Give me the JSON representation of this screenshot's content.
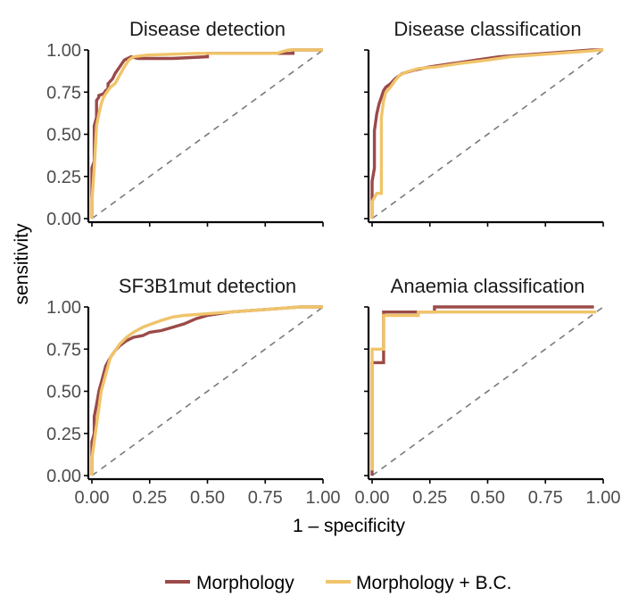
{
  "colors": {
    "morphology": "#9b4a48",
    "morphology_bc": "#f0c46a",
    "overlap": "#d99638",
    "diagonal": "#7a7a7a"
  },
  "xlabel": "1 – specificity",
  "ylabel": "sensitivity",
  "legend": {
    "position": "bottom",
    "items": [
      "Morphology",
      "Morphology + B.C."
    ]
  },
  "chart_data": [
    {
      "type": "line",
      "title": "Disease detection",
      "xlim": [
        0,
        1
      ],
      "ylim": [
        0,
        1
      ],
      "x_ticks": [
        "0.00",
        "0.25",
        "0.50",
        "0.75",
        "1.00"
      ],
      "y_ticks": [
        "0.00",
        "0.25",
        "0.50",
        "0.75",
        "1.00"
      ],
      "series": [
        {
          "name": "Morphology",
          "x": [
            0,
            0,
            0.01,
            0.01,
            0.02,
            0.02,
            0.03,
            0.03,
            0.05,
            0.06,
            0.07,
            0.07,
            0.09,
            0.1,
            0.12,
            0.14,
            0.17,
            0.2,
            0.35,
            0.5,
            0.5,
            0.87,
            0.87,
            1.0
          ],
          "y": [
            0,
            0.3,
            0.34,
            0.55,
            0.6,
            0.7,
            0.72,
            0.73,
            0.74,
            0.76,
            0.77,
            0.8,
            0.83,
            0.86,
            0.9,
            0.94,
            0.96,
            0.95,
            0.95,
            0.96,
            0.98,
            0.98,
            1.0,
            1.0
          ]
        },
        {
          "name": "Morphology + B.C.",
          "x": [
            0,
            0,
            0.01,
            0.02,
            0.03,
            0.04,
            0.05,
            0.06,
            0.08,
            0.1,
            0.12,
            0.14,
            0.16,
            0.18,
            0.24,
            0.45,
            0.8,
            0.85,
            1.0
          ],
          "y": [
            0,
            0.1,
            0.3,
            0.55,
            0.62,
            0.68,
            0.72,
            0.74,
            0.78,
            0.8,
            0.85,
            0.9,
            0.94,
            0.96,
            0.97,
            0.98,
            0.98,
            1.0,
            1.0
          ]
        }
      ]
    },
    {
      "type": "line",
      "title": "Disease classification",
      "xlim": [
        0,
        1
      ],
      "ylim": [
        0,
        1
      ],
      "x_ticks": [
        "0.00",
        "0.25",
        "0.50",
        "0.75",
        "1.00"
      ],
      "y_ticks": [
        "0.00",
        "0.25",
        "0.50",
        "0.75",
        "1.00"
      ],
      "series": [
        {
          "name": "Morphology",
          "x": [
            0,
            0,
            0.01,
            0.01,
            0.02,
            0.03,
            0.04,
            0.05,
            0.06,
            0.08,
            0.1,
            0.13,
            0.18,
            0.25,
            0.35,
            0.45,
            0.55,
            0.65,
            0.75,
            0.85,
            0.95,
            1.0
          ],
          "y": [
            0,
            0.22,
            0.3,
            0.52,
            0.62,
            0.68,
            0.72,
            0.76,
            0.78,
            0.8,
            0.83,
            0.86,
            0.88,
            0.9,
            0.92,
            0.94,
            0.96,
            0.97,
            0.98,
            0.99,
            1.0,
            1.0
          ]
        },
        {
          "name": "Morphology + B.C.",
          "x": [
            0,
            0,
            0.02,
            0.04,
            0.04,
            0.05,
            0.06,
            0.08,
            0.1,
            0.12,
            0.15,
            0.2,
            0.28,
            0.38,
            0.5,
            0.6,
            0.7,
            0.8,
            0.9,
            1.0
          ],
          "y": [
            0,
            0.1,
            0.15,
            0.15,
            0.6,
            0.7,
            0.75,
            0.78,
            0.82,
            0.85,
            0.87,
            0.89,
            0.9,
            0.92,
            0.94,
            0.96,
            0.97,
            0.98,
            0.99,
            1.0
          ]
        }
      ]
    },
    {
      "type": "line",
      "title": "SF3B1mut detection",
      "xlim": [
        0,
        1
      ],
      "ylim": [
        0,
        1
      ],
      "x_ticks": [
        "0.00",
        "0.25",
        "0.50",
        "0.75",
        "1.00"
      ],
      "y_ticks": [
        "0.00",
        "0.25",
        "0.50",
        "0.75",
        "1.00"
      ],
      "series": [
        {
          "name": "Morphology",
          "x": [
            0,
            0,
            0.01,
            0.01,
            0.02,
            0.03,
            0.04,
            0.05,
            0.06,
            0.08,
            0.1,
            0.12,
            0.15,
            0.18,
            0.22,
            0.25,
            0.3,
            0.35,
            0.4,
            0.45,
            0.5,
            0.6,
            0.7,
            0.8,
            0.9,
            1.0
          ],
          "y": [
            0,
            0.2,
            0.25,
            0.35,
            0.42,
            0.5,
            0.55,
            0.6,
            0.65,
            0.7,
            0.74,
            0.77,
            0.8,
            0.82,
            0.83,
            0.85,
            0.86,
            0.88,
            0.9,
            0.93,
            0.95,
            0.97,
            0.98,
            0.99,
            1.0,
            1.0
          ]
        },
        {
          "name": "Morphology + B.C.",
          "x": [
            0,
            0,
            0.01,
            0.02,
            0.03,
            0.04,
            0.05,
            0.06,
            0.07,
            0.08,
            0.1,
            0.12,
            0.15,
            0.18,
            0.22,
            0.26,
            0.3,
            0.35,
            0.4,
            0.5,
            0.6,
            0.7,
            0.8,
            0.9,
            1.0
          ],
          "y": [
            0,
            0.1,
            0.2,
            0.3,
            0.4,
            0.5,
            0.55,
            0.6,
            0.65,
            0.7,
            0.74,
            0.78,
            0.82,
            0.85,
            0.88,
            0.9,
            0.92,
            0.94,
            0.95,
            0.96,
            0.97,
            0.98,
            0.99,
            1.0,
            1.0
          ]
        }
      ]
    },
    {
      "type": "line",
      "title": "Anaemia classification",
      "xlim": [
        0,
        1
      ],
      "ylim": [
        0,
        1
      ],
      "x_ticks": [
        "0.00",
        "0.25",
        "0.50",
        "0.75",
        "1.00"
      ],
      "y_ticks": [
        "0.00",
        "0.25",
        "0.50",
        "0.75",
        "1.00"
      ],
      "series": [
        {
          "name": "Morphology",
          "x": [
            0,
            0,
            0.02,
            0.05,
            0.05,
            0.27,
            0.27,
            0.96
          ],
          "y": [
            0,
            0.67,
            0.67,
            0.67,
            0.97,
            0.97,
            1.0,
            1.0
          ]
        },
        {
          "name": "Morphology + B.C.",
          "x": [
            0,
            0,
            0.02,
            0.05,
            0.05,
            0.2,
            0.2,
            0.97
          ],
          "y": [
            0.03,
            0.75,
            0.75,
            0.75,
            0.95,
            0.95,
            0.97,
            0.97
          ]
        }
      ]
    }
  ]
}
